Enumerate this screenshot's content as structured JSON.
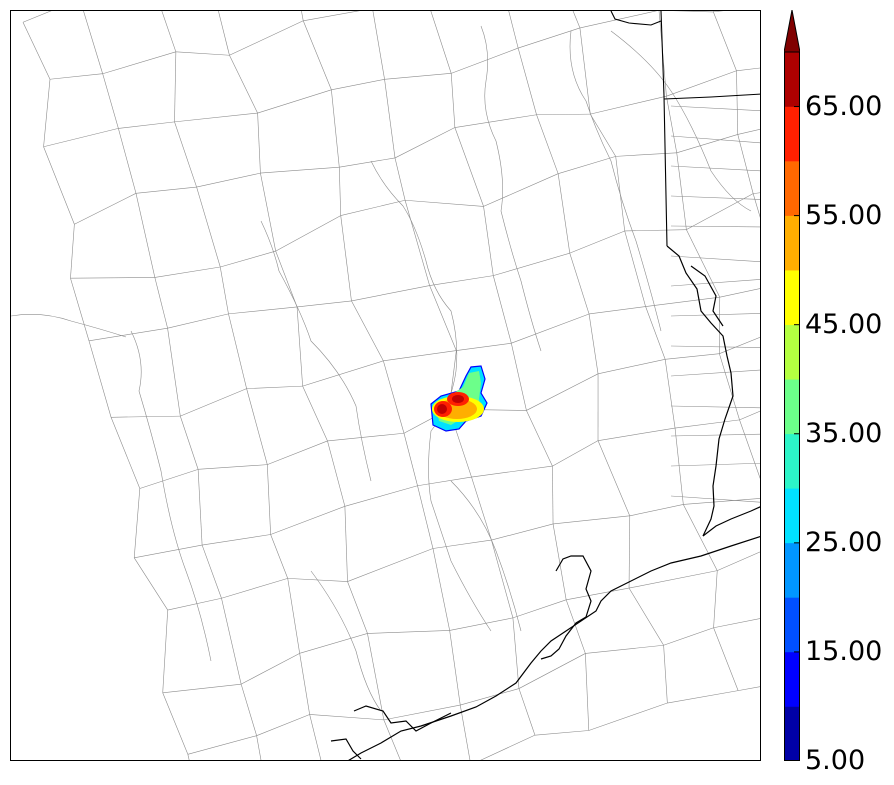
{
  "map": {
    "colorbar": {
      "min": 5,
      "max": 70,
      "extend": "max",
      "levels": [
        5,
        10,
        15,
        20,
        25,
        30,
        35,
        40,
        45,
        50,
        55,
        60,
        65,
        70
      ],
      "colors": [
        "#0000a6",
        "#0000ff",
        "#0050ff",
        "#0096ff",
        "#00e1ff",
        "#2cf5c8",
        "#6cff8a",
        "#b4ff41",
        "#ffff00",
        "#ffae00",
        "#ff6800",
        "#ff2000",
        "#ae0000"
      ],
      "extend_color": "#800000",
      "tick_labels": [
        "5.00",
        "15.00",
        "25.00",
        "35.00",
        "45.00",
        "55.00",
        "65.00"
      ]
    },
    "storm": {
      "outline_color": "#0000ff",
      "core_color": "#c00000"
    },
    "colors": {
      "county_lines": "#8c8c8c",
      "state_lines": "#000000",
      "coastline": "#000000"
    }
  }
}
